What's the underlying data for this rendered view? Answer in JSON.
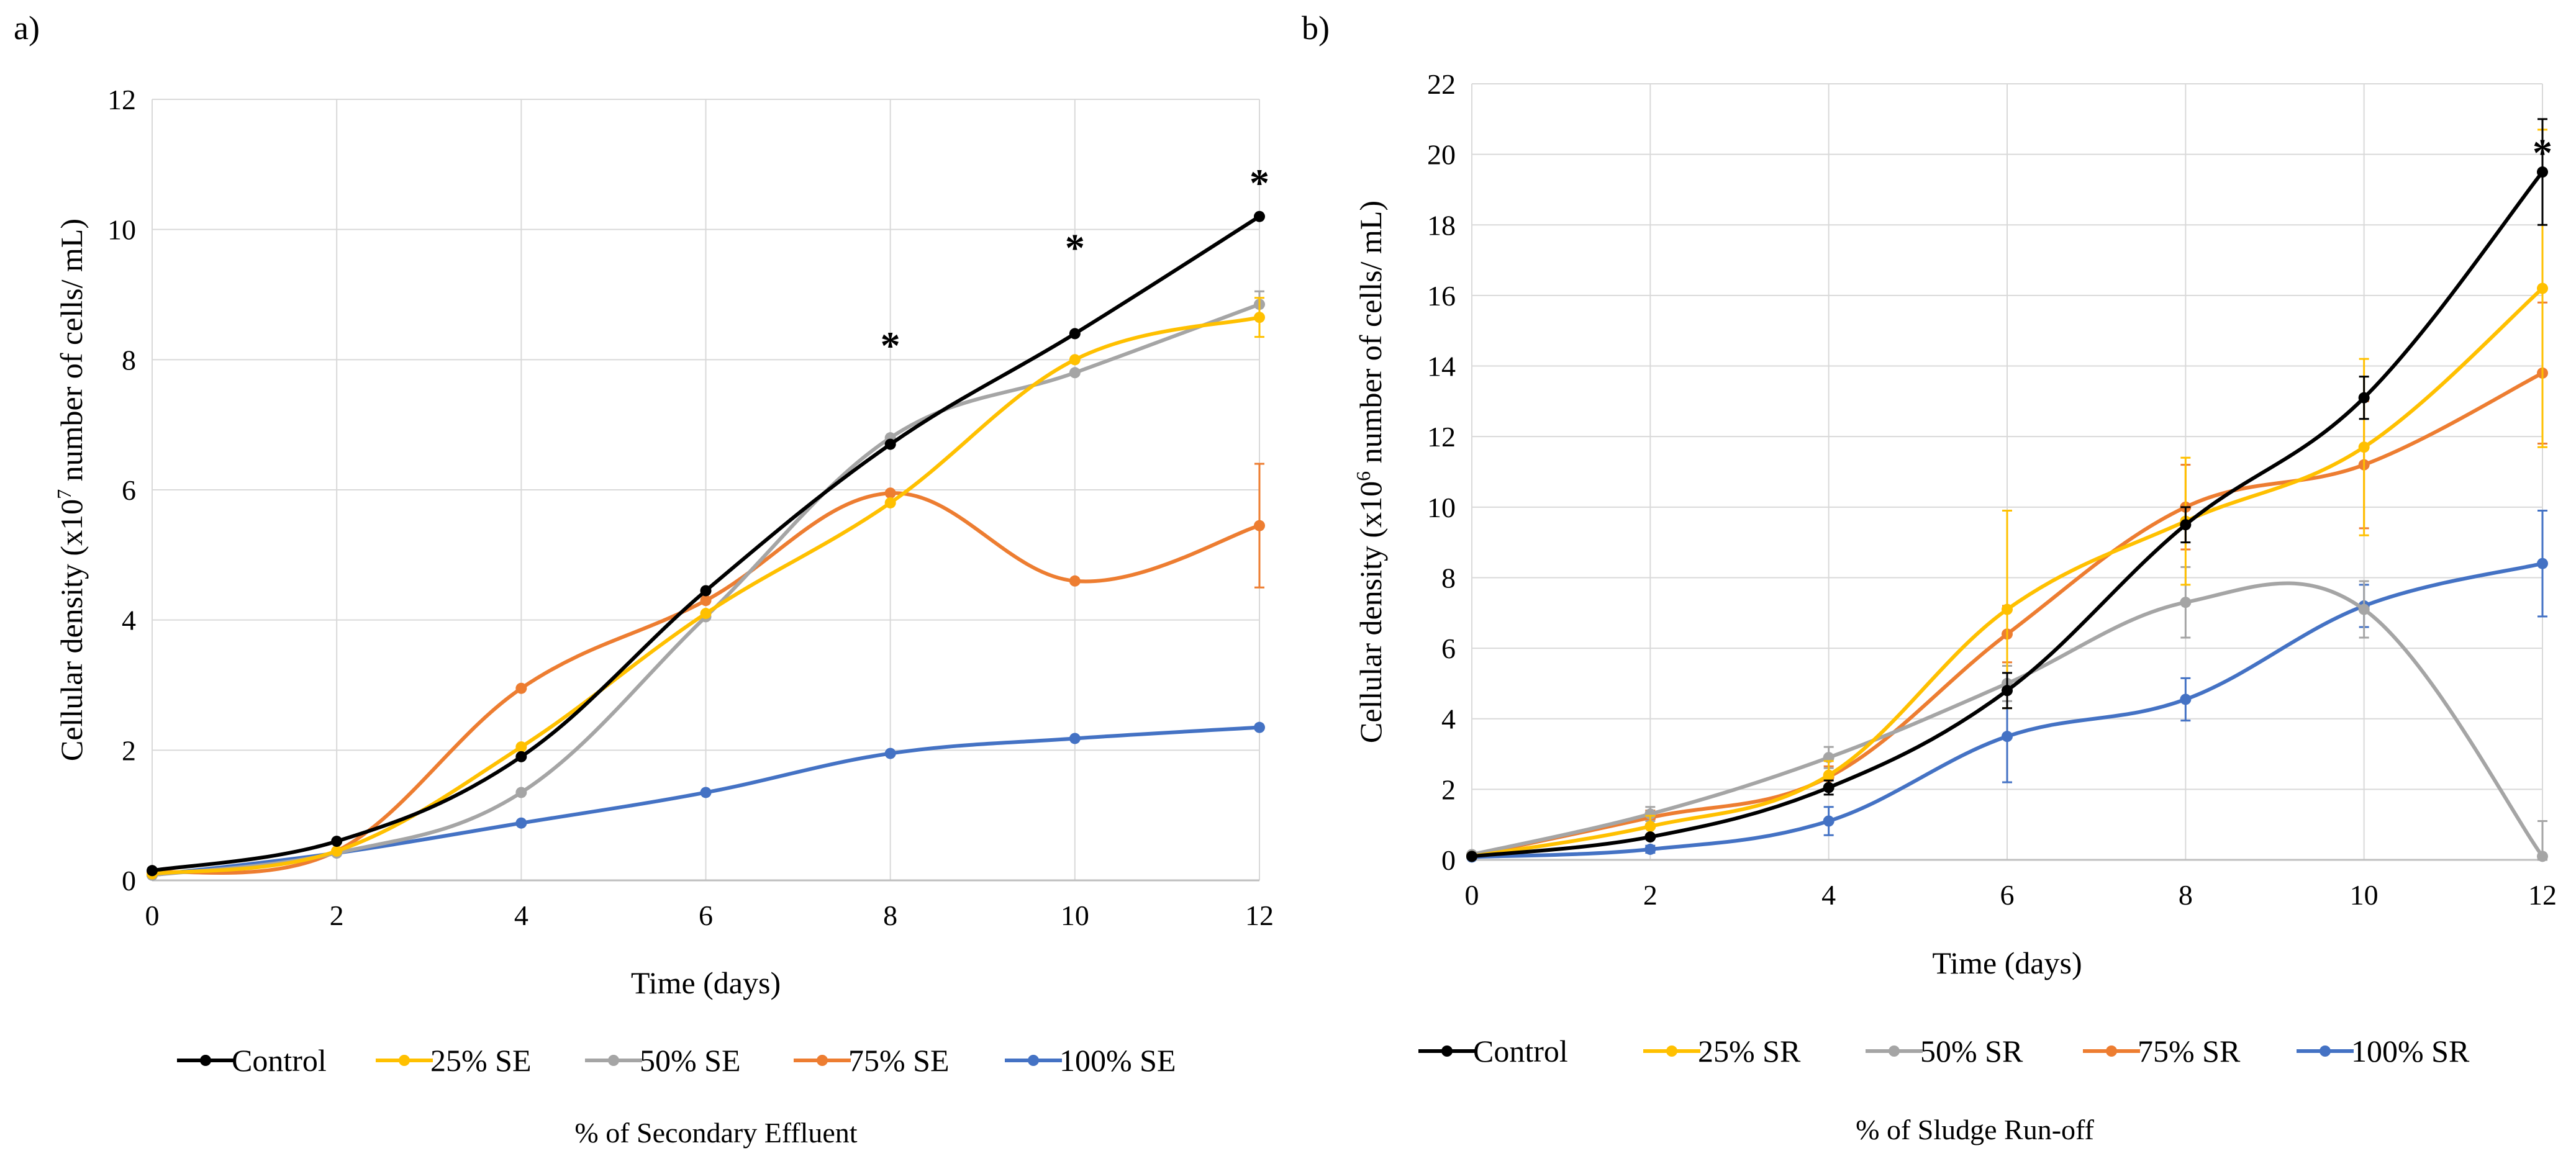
{
  "chart_data": [
    {
      "panel_label": "a)",
      "type": "line",
      "x": [
        0,
        2,
        4,
        6,
        8,
        10,
        12
      ],
      "xlabel": "Time (days)",
      "ylabel_main": "Cellular density (x10",
      "ylabel_exp": "7",
      "ylabel_tail": " number of cells/ mL)",
      "caption": "% of Secondary Effluent",
      "xlim": [
        0,
        12
      ],
      "ylim": [
        0,
        12
      ],
      "xticks": [
        "0",
        "2",
        "4",
        "6",
        "8",
        "10",
        "12"
      ],
      "yticks": [
        "0",
        "2",
        "4",
        "6",
        "8",
        "10",
        "12"
      ],
      "grid": true,
      "legend_position": "bottom",
      "significance_marks": [
        {
          "x": 8,
          "y": 8.3,
          "label": "*"
        },
        {
          "x": 10,
          "y": 9.8,
          "label": "*"
        },
        {
          "x": 12,
          "y": 10.8,
          "label": "*"
        }
      ],
      "series": [
        {
          "name": "Control",
          "color": "#000000",
          "values": [
            0.15,
            0.6,
            1.9,
            4.45,
            6.7,
            8.4,
            10.2
          ],
          "err": [
            0,
            0,
            0,
            0,
            0,
            0,
            0
          ]
        },
        {
          "name": "25% SE",
          "color": "#FFC000",
          "values": [
            0.1,
            0.45,
            2.05,
            4.1,
            5.8,
            8.0,
            8.65
          ],
          "err": [
            0,
            0,
            0,
            0,
            0,
            0,
            0.3
          ]
        },
        {
          "name": "50% SE",
          "color": "#A5A5A5",
          "values": [
            0.08,
            0.42,
            1.35,
            4.05,
            6.8,
            7.8,
            8.85
          ],
          "err": [
            0,
            0,
            0,
            0,
            0,
            0,
            0.2
          ]
        },
        {
          "name": "75% SE",
          "color": "#ED7D31",
          "values": [
            0.12,
            0.45,
            2.95,
            4.3,
            5.95,
            4.6,
            5.45
          ],
          "err": [
            0,
            0,
            0,
            0,
            0,
            0,
            0.95
          ]
        },
        {
          "name": "100% SE",
          "color": "#4472C4",
          "values": [
            0.08,
            0.42,
            0.88,
            1.35,
            1.95,
            2.18,
            2.35
          ],
          "err": [
            0,
            0,
            0,
            0,
            0,
            0,
            0
          ]
        }
      ]
    },
    {
      "panel_label": "b)",
      "type": "line",
      "x": [
        0,
        2,
        4,
        6,
        8,
        10,
        12
      ],
      "xlabel": "Time (days)",
      "ylabel_main": "Cellular density (x10",
      "ylabel_exp": "6",
      "ylabel_tail": " number of cells/ mL)",
      "caption": "% of Sludge Run-off",
      "xlim": [
        0,
        12
      ],
      "ylim": [
        0,
        22
      ],
      "xticks": [
        "0",
        "2",
        "4",
        "6",
        "8",
        "10",
        "12"
      ],
      "yticks": [
        "0",
        "2",
        "4",
        "6",
        "8",
        "10",
        "12",
        "14",
        "16",
        "18",
        "20",
        "22"
      ],
      "grid": true,
      "legend_position": "bottom",
      "significance_marks": [
        {
          "x": 12,
          "y": 20.2,
          "label": "*"
        }
      ],
      "series": [
        {
          "name": "Control",
          "color": "#000000",
          "values": [
            0.1,
            0.65,
            2.05,
            4.8,
            9.5,
            13.1,
            19.5
          ],
          "err": [
            0,
            0,
            0.2,
            0.5,
            0.5,
            0.6,
            1.5
          ]
        },
        {
          "name": "25% SR",
          "color": "#FFC000",
          "values": [
            0.1,
            0.95,
            2.4,
            7.1,
            9.6,
            11.7,
            16.2
          ],
          "err": [
            0,
            0.3,
            0.4,
            2.8,
            1.8,
            2.5,
            4.5
          ]
        },
        {
          "name": "50% SR",
          "color": "#A5A5A5",
          "values": [
            0.15,
            1.3,
            2.9,
            5.0,
            7.3,
            7.1,
            0.1
          ],
          "err": [
            0,
            0.2,
            0.3,
            0.5,
            1.0,
            0.8,
            1.0
          ]
        },
        {
          "name": "75% SR",
          "color": "#ED7D31",
          "values": [
            0.12,
            1.2,
            2.35,
            6.4,
            10.0,
            11.2,
            13.8
          ],
          "err": [
            0,
            0.2,
            0.3,
            0.8,
            1.2,
            1.8,
            2.0
          ]
        },
        {
          "name": "100% SR",
          "color": "#4472C4",
          "values": [
            0.08,
            0.3,
            1.1,
            3.5,
            4.55,
            7.2,
            8.4
          ],
          "err": [
            0,
            0.1,
            0.4,
            1.3,
            0.6,
            0.6,
            1.5
          ]
        }
      ]
    }
  ]
}
